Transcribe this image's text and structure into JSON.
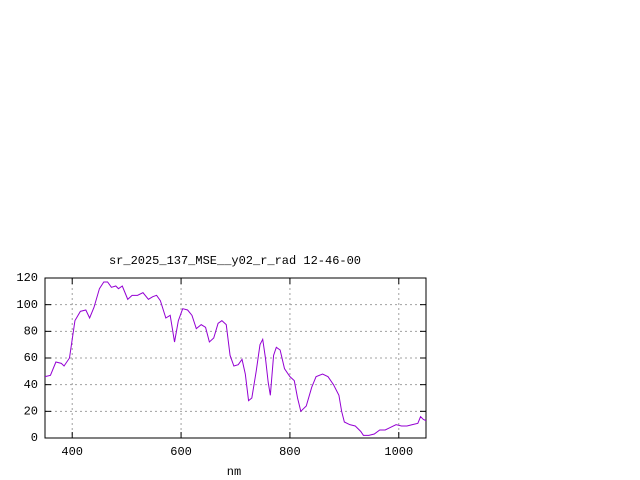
{
  "chart_data": {
    "type": "line",
    "title": "sr_2025_137_MSE__y02_r_rad 12-46-00",
    "x_label": "nm",
    "x": [
      350,
      360,
      370,
      380,
      385,
      395,
      405,
      415,
      425,
      432,
      440,
      450,
      458,
      465,
      472,
      480,
      485,
      492,
      498,
      502,
      510,
      520,
      530,
      540,
      548,
      555,
      562,
      572,
      580,
      588,
      595,
      603,
      612,
      620,
      628,
      637,
      645,
      652,
      660,
      668,
      675,
      683,
      690,
      697,
      705,
      712,
      718,
      724,
      730,
      738,
      745,
      750,
      755,
      760,
      764,
      770,
      775,
      782,
      790,
      800,
      808,
      814,
      820,
      830,
      840,
      848,
      860,
      870,
      880,
      890,
      895,
      900,
      910,
      920,
      930,
      935,
      945,
      955,
      965,
      975,
      985,
      995,
      1005,
      1015,
      1025,
      1035,
      1040,
      1045,
      1050
    ],
    "series": [
      {
        "color": "#9400d3",
        "values": [
          46,
          47,
          57,
          56,
          54,
          60,
          88,
          95,
          96,
          90,
          98,
          112,
          117,
          117,
          113,
          114,
          112,
          114,
          108,
          104,
          107,
          107,
          109,
          104,
          106,
          107,
          103,
          90,
          92,
          72,
          88,
          97,
          96,
          92,
          82,
          85,
          83,
          72,
          75,
          86,
          88,
          85,
          62,
          54,
          55,
          59,
          48,
          28,
          30,
          50,
          70,
          74,
          60,
          42,
          32,
          62,
          68,
          66,
          52,
          46,
          43,
          30,
          20,
          24,
          38,
          46,
          48,
          46,
          40,
          32,
          20,
          12,
          10,
          9,
          5,
          2,
          2,
          3,
          6,
          6,
          8,
          10,
          9,
          9,
          10,
          11,
          16,
          14,
          13
        ]
      }
    ],
    "xlim": [
      350,
      1050
    ],
    "xticks": [
      400,
      600,
      800,
      1000
    ],
    "ylim": [
      0,
      120
    ],
    "yticks": [
      0,
      20,
      40,
      60,
      80,
      100,
      120
    ],
    "grid": true
  }
}
